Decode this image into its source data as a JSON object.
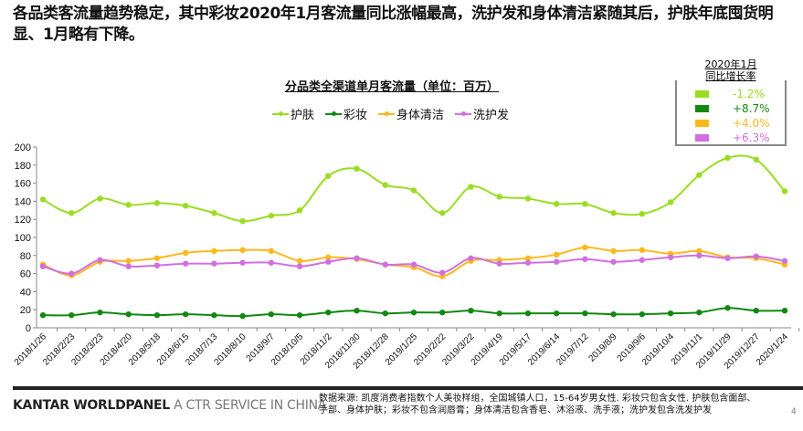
{
  "headline": "各品类客流量趋势稳定，其中彩妆2020年1月客流量同比涨幅最高，洗护发和身体清洁紧随其后，护肤年底囤货明显、1月略有下降。",
  "growth_box": {
    "title1": "2020年1月",
    "title2": "同比增长率",
    "items": [
      {
        "label": "护肤",
        "value": "-1.2%",
        "color": "#99dd22"
      },
      {
        "label": "彩妆",
        "value": "+8.7%",
        "color": "#118811"
      },
      {
        "label": "身体清洁",
        "value": "+4.0%",
        "color": "#ffb81c"
      },
      {
        "label": "洗护发",
        "value": "+6.3%",
        "color": "#d070e0"
      }
    ]
  },
  "chart_data": {
    "type": "line",
    "title": "分品类全渠道单月客流量（单位：百万）",
    "xlabel": "",
    "ylabel": "",
    "ylim": [
      0,
      200
    ],
    "yticks": [
      0,
      20,
      40,
      60,
      80,
      100,
      120,
      140,
      160,
      180,
      200
    ],
    "grid": false,
    "legend": "top",
    "categories": [
      "2018/1/26",
      "2018/2/23",
      "2018/3/23",
      "2018/4/20",
      "2018/5/18",
      "2018/6/15",
      "2018/7/13",
      "2018/8/10",
      "2018/9/7",
      "2018/10/5",
      "2018/11/2",
      "2018/11/30",
      "2018/12/28",
      "2019/1/25",
      "2019/2/22",
      "2019/3/22",
      "2019/4/19",
      "2019/5/17",
      "2019/6/14",
      "2019/7/12",
      "2019/8/9",
      "2019/9/6",
      "2019/10/4",
      "2019/11/1",
      "2019/11/29",
      "2019/12/27",
      "2020/1/24"
    ],
    "series": [
      {
        "name": "护肤",
        "color": "#99dd22",
        "values": [
          142,
          127,
          143,
          136,
          138,
          135,
          127,
          118,
          124,
          130,
          168,
          176,
          158,
          152,
          127,
          156,
          145,
          143,
          137,
          137,
          127,
          126,
          139,
          169,
          188,
          186,
          151
        ]
      },
      {
        "name": "彩妆",
        "color": "#118811",
        "values": [
          14,
          14,
          17,
          15,
          14,
          15,
          14,
          13,
          15,
          14,
          17,
          19,
          16,
          17,
          17,
          19,
          16,
          16,
          16,
          16,
          15,
          15,
          16,
          17,
          22,
          19,
          19
        ]
      },
      {
        "name": "身体清洁",
        "color": "#ffb81c",
        "values": [
          70,
          58,
          73,
          74,
          77,
          83,
          85,
          86,
          85,
          74,
          78,
          76,
          70,
          67,
          57,
          74,
          75,
          77,
          81,
          89,
          85,
          86,
          82,
          85,
          78,
          77,
          70
        ]
      },
      {
        "name": "洗护发",
        "color": "#d070e0",
        "values": [
          68,
          60,
          75,
          68,
          69,
          71,
          71,
          72,
          72,
          68,
          73,
          77,
          70,
          70,
          61,
          77,
          71,
          72,
          73,
          76,
          73,
          75,
          78,
          80,
          77,
          79,
          74
        ]
      }
    ]
  },
  "footer": {
    "brand_bold": "KANTAR WORLDPANEL",
    "brand_light": " A CTR SERVICE IN CHINA",
    "notes": "数据来源: 凯度消费者指数个人美妆样组，全国城镇人口，15-64岁男女性.  彩妆只包含女性. 护肤包含面部、手部、身体护肤；彩妆不包含润唇膏；身体清洁包含香皂、沐浴液、洗手液；洗护发包含洗发护发",
    "page": "4"
  }
}
